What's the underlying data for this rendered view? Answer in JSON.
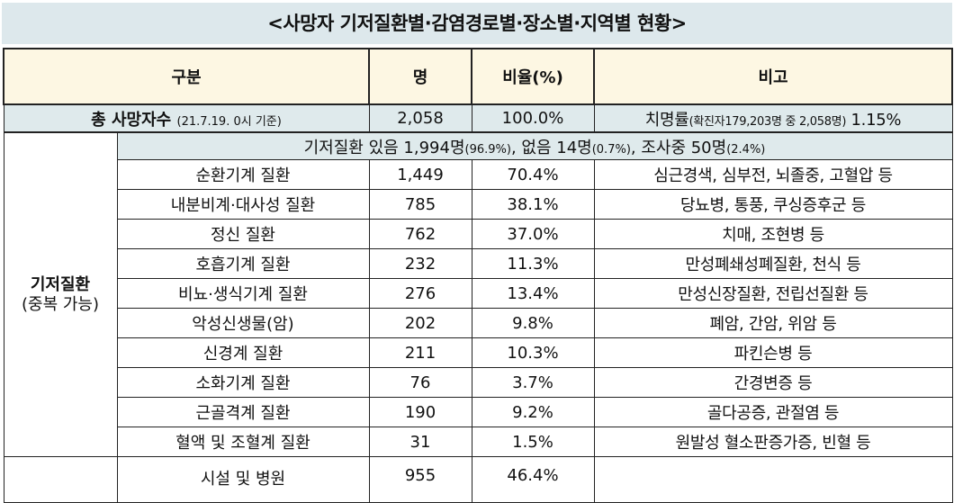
{
  "title": "<사망자 기저질환별·감염경로별·장소별·지역별 현황>",
  "header": {
    "category": "구분",
    "count": "명",
    "ratio": "비율(%)",
    "note": "비고"
  },
  "total": {
    "label": "총 사망자수",
    "date": "(21.7.19. 0시 기준)",
    "count": "2,058",
    "ratio": "100.0%",
    "note_main": "치명률",
    "note_detail": "(확진자179,203명 중 2,058명)",
    "note_rate": "1.15%"
  },
  "underlying": {
    "group_label": "기저질환",
    "group_sub": "(중복 가능)",
    "summary_a": "기저질환 있음 1,994명",
    "summary_b": "(96.9%)",
    "summary_c": ", 없음 14명",
    "summary_d": "(0.7%)",
    "summary_e": ", 조사중 50명",
    "summary_f": "(2.4%)",
    "rows": [
      {
        "name": "순환기계 질환",
        "count": "1,449",
        "ratio": "70.4%",
        "note": "심근경색, 심부전, 뇌졸중, 고혈압 등"
      },
      {
        "name": "내분비계·대사성 질환",
        "count": "785",
        "ratio": "38.1%",
        "note": "당뇨병, 통풍, 쿠싱증후군 등"
      },
      {
        "name": "정신 질환",
        "count": "762",
        "ratio": "37.0%",
        "note": "치매, 조현병 등"
      },
      {
        "name": "호흡기계 질환",
        "count": "232",
        "ratio": "11.3%",
        "note": "만성폐쇄성폐질환, 천식 등"
      },
      {
        "name": "비뇨·생식기계 질환",
        "count": "276",
        "ratio": "13.4%",
        "note": "만성신장질환, 전립선질환 등"
      },
      {
        "name": "악성신생물(암)",
        "count": "202",
        "ratio": "9.8%",
        "note": "폐암, 간암, 위암 등"
      },
      {
        "name": "신경계 질환",
        "count": "211",
        "ratio": "10.3%",
        "note": "파킨슨병 등"
      },
      {
        "name": "소화기계 질환",
        "count": "76",
        "ratio": "3.7%",
        "note": "간경변증 등"
      },
      {
        "name": "근골격계 질환",
        "count": "190",
        "ratio": "9.2%",
        "note": "골다공증, 관절염 등"
      },
      {
        "name": "혈액 및 조혈계 질환",
        "count": "31",
        "ratio": "1.5%",
        "note": "원발성 혈소판증가증, 빈혈 등"
      }
    ]
  },
  "next_row": {
    "name": "시설 및 병원",
    "count": "955",
    "ratio": "46.4%"
  }
}
